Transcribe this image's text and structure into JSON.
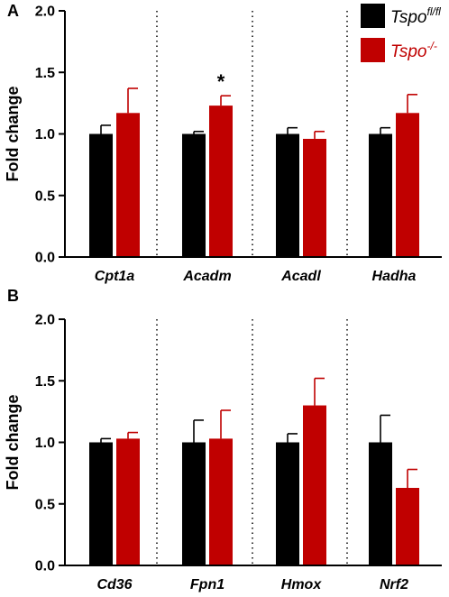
{
  "colors": {
    "control": "#000000",
    "knockout": "#C00000",
    "axis": "#000000"
  },
  "legend": {
    "items": [
      {
        "base": "Tspo",
        "sup": "fl/fl",
        "color": "#000000"
      },
      {
        "base": "Tspo",
        "sup": "-/-",
        "color": "#C00000"
      }
    ],
    "placement": "top-right"
  },
  "chart_data": [
    {
      "type": "bar",
      "panel": "A",
      "ylabel": "Fold change",
      "ylim": [
        0,
        2.0
      ],
      "yticks": [
        0.0,
        0.5,
        1.0,
        1.5,
        2.0
      ],
      "ytick_labels": [
        "0.0",
        "0.5",
        "1.0",
        "1.5",
        "2.0"
      ],
      "categories": [
        "Cpt1a",
        "Acadm",
        "Acadl",
        "Hadha"
      ],
      "series": [
        {
          "values": [
            1.0,
            1.0,
            1.0,
            1.0
          ],
          "errors": [
            0.07,
            0.02,
            0.05,
            0.05
          ]
        },
        {
          "values": [
            1.17,
            1.23,
            0.96,
            1.17
          ],
          "errors": [
            0.2,
            0.08,
            0.06,
            0.15
          ]
        }
      ],
      "significance": [
        {
          "category": "Acadm",
          "series": 1,
          "label": "*"
        }
      ],
      "separators": true
    },
    {
      "type": "bar",
      "panel": "B",
      "ylabel": "Fold change",
      "ylim": [
        0,
        2.0
      ],
      "yticks": [
        0.0,
        0.5,
        1.0,
        1.5,
        2.0
      ],
      "ytick_labels": [
        "0.0",
        "0.5",
        "1.0",
        "1.5",
        "2.0"
      ],
      "categories": [
        "Cd36",
        "Fpn1",
        "Hmox",
        "Nrf2"
      ],
      "series": [
        {
          "values": [
            1.0,
            1.0,
            1.0,
            1.0
          ],
          "errors": [
            0.03,
            0.18,
            0.07,
            0.22
          ]
        },
        {
          "values": [
            1.03,
            1.03,
            1.3,
            0.63
          ],
          "errors": [
            0.05,
            0.23,
            0.22,
            0.15
          ]
        }
      ],
      "significance": [],
      "separators": true
    }
  ]
}
